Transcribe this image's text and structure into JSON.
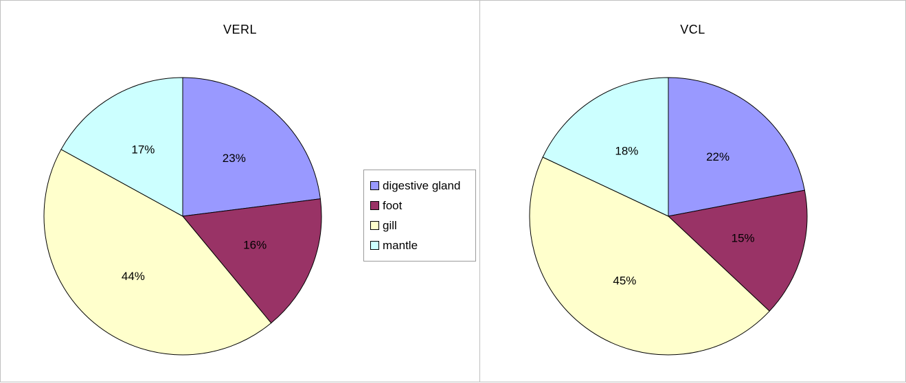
{
  "chart_data": [
    {
      "type": "pie",
      "title": "VERL",
      "categories": [
        "digestive gland",
        "foot",
        "gill",
        "mantle"
      ],
      "values": [
        23,
        16,
        44,
        17
      ],
      "labels": [
        "23%",
        "16%",
        "44%",
        "17%"
      ],
      "unit": "%",
      "colors": [
        "#9999ff",
        "#993366",
        "#ffffcc",
        "#ccffff"
      ]
    },
    {
      "type": "pie",
      "title": "VCL",
      "categories": [
        "digestive gland",
        "foot",
        "gill",
        "mantle"
      ],
      "values": [
        22,
        15,
        45,
        18
      ],
      "labels": [
        "22%",
        "15%",
        "45%",
        "18%"
      ],
      "unit": "%",
      "colors": [
        "#9999ff",
        "#993366",
        "#ffffcc",
        "#ccffff"
      ]
    }
  ],
  "legend": {
    "placement": "center",
    "items": [
      {
        "label": "digestive gland",
        "color": "#9999ff"
      },
      {
        "label": "foot",
        "color": "#993366"
      },
      {
        "label": "gill",
        "color": "#ffffcc"
      },
      {
        "label": "mantle",
        "color": "#ccffff"
      }
    ]
  }
}
